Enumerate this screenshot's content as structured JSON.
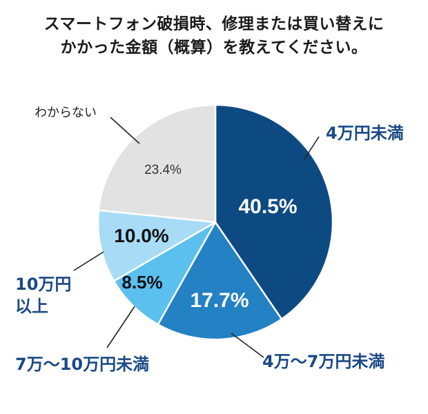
{
  "chart_data": {
    "type": "pie",
    "title_lines": [
      "スマートフォン破損時、修理または買い替えに",
      "かかった金額（概算）を教えてください。"
    ],
    "slices": [
      {
        "label": "4万円未満",
        "value": 40.5,
        "value_label": "40.5%",
        "color": "#0e4a82",
        "label_color": "#1a4a86",
        "text_color": "#ffffff"
      },
      {
        "label": "4万〜7万円未満",
        "value": 17.7,
        "value_label": "17.7%",
        "color": "#2481c4",
        "label_color": "#1a4a86",
        "text_color": "#ffffff"
      },
      {
        "label": "7万〜10万円未満",
        "value": 8.5,
        "value_label": "8.5%",
        "color": "#5bc0ee",
        "label_color": "#1a4a86",
        "text_color": "#111111"
      },
      {
        "label_lines": [
          "10万円",
          "以上"
        ],
        "value": 10.0,
        "value_label": "10.0%",
        "color": "#a8dcf6",
        "label_color": "#1a4a86",
        "text_color": "#111111"
      },
      {
        "label": "わからない",
        "value": 23.4,
        "value_label": "23.4%",
        "color": "#e2e2e2",
        "label_color": "#222222",
        "text_color": "#333333"
      }
    ],
    "legend": "none"
  }
}
